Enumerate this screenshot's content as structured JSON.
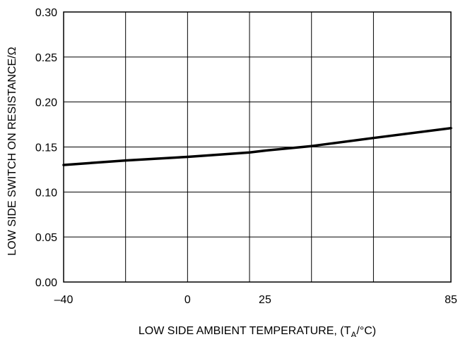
{
  "chart_data": {
    "type": "line",
    "title": "",
    "xlabel": {
      "prefix": "LOW SIDE AMBIENT TEMPERATURE, (T",
      "subscript": "A",
      "suffix": "/°C)"
    },
    "ylabel": "LOW SIDE SWITCH ON RESISTANCE/Ω",
    "xlim": [
      -40,
      85
    ],
    "ylim": [
      0,
      0.3
    ],
    "grid": true,
    "legend": "none",
    "x_ticks": [
      {
        "value": -40,
        "label": "–40"
      },
      {
        "value": 0,
        "label": "0"
      },
      {
        "value": 25,
        "label": "25"
      },
      {
        "value": 85,
        "label": "85"
      }
    ],
    "x_gridlines": [
      -40,
      -20,
      0,
      20,
      40,
      60,
      85
    ],
    "y_ticks": [
      {
        "value": 0.0,
        "label": "0.00"
      },
      {
        "value": 0.05,
        "label": "0.05"
      },
      {
        "value": 0.1,
        "label": "0.10"
      },
      {
        "value": 0.15,
        "label": "0.15"
      },
      {
        "value": 0.2,
        "label": "0.20"
      },
      {
        "value": 0.25,
        "label": "0.25"
      },
      {
        "value": 0.3,
        "label": "0.30"
      }
    ],
    "series": [
      {
        "x": [
          -40,
          -20,
          0,
          20,
          25,
          40,
          60,
          85
        ],
        "y": [
          0.13,
          0.135,
          0.139,
          0.144,
          0.146,
          0.151,
          0.16,
          0.171
        ],
        "color": "#000000"
      }
    ]
  }
}
